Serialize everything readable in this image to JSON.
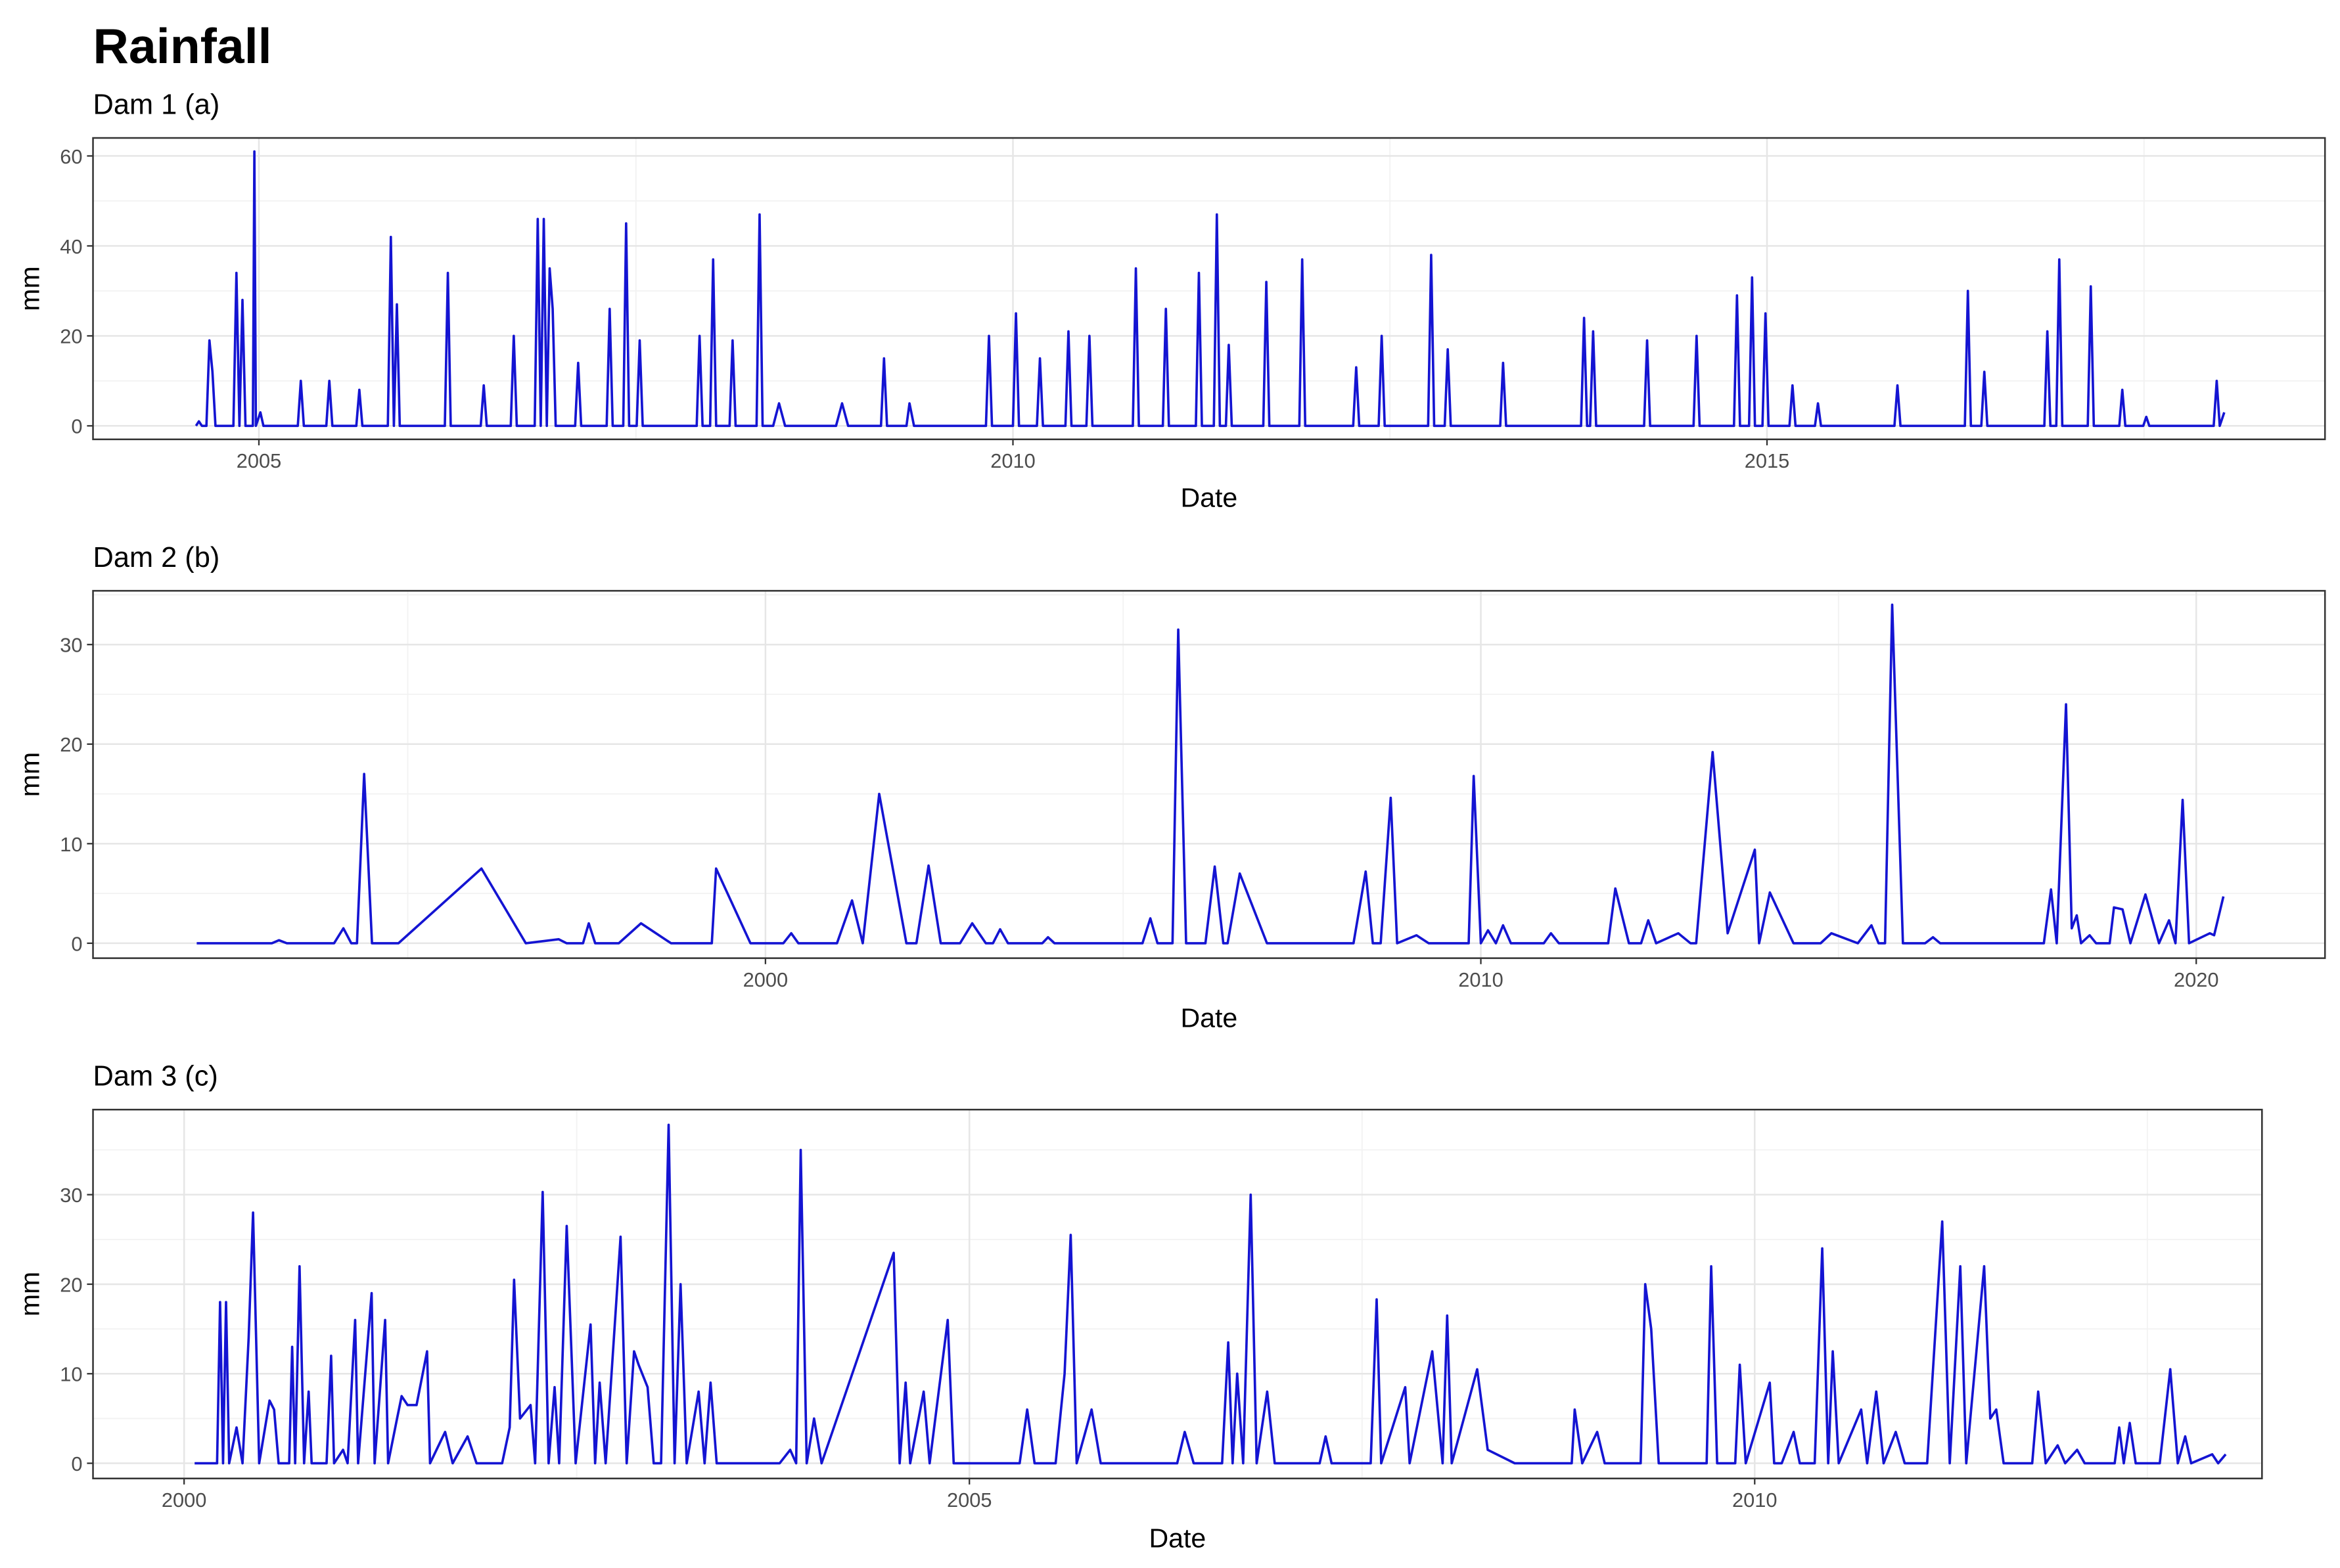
{
  "title": "Rainfall",
  "chart_data": [
    {
      "type": "line",
      "subtitle": "Dam 1 (a)",
      "x_label": "Date",
      "y_label": "mm",
      "color": "#1414d2",
      "grid": true,
      "xlim": [
        2003.9,
        2018.7
      ],
      "xticks": [
        2005,
        2010,
        2015
      ],
      "ylim": [
        -3,
        64
      ],
      "yticks": [
        0,
        20,
        40,
        60
      ],
      "x": [
        2004.583,
        2004.602,
        2004.622,
        2004.652,
        2004.672,
        2004.692,
        2004.712,
        2004.831,
        2004.851,
        2004.871,
        2004.891,
        2004.911,
        2004.96,
        2004.97,
        2004.98,
        2005.01,
        2005.03,
        2005.258,
        2005.278,
        2005.298,
        2005.447,
        2005.467,
        2005.487,
        2005.646,
        2005.666,
        2005.686,
        2005.855,
        2005.875,
        2005.895,
        2005.915,
        2005.934,
        2006.233,
        2006.253,
        2006.272,
        2006.471,
        2006.491,
        2006.511,
        2006.67,
        2006.69,
        2006.71,
        2006.829,
        2006.849,
        2006.869,
        2006.889,
        2006.909,
        2006.928,
        2006.948,
        2006.968,
        2007.097,
        2007.117,
        2007.137,
        2007.306,
        2007.326,
        2007.346,
        2007.416,
        2007.435,
        2007.455,
        2007.505,
        2007.525,
        2007.545,
        2007.903,
        2007.922,
        2007.942,
        2007.992,
        2008.012,
        2008.032,
        2008.121,
        2008.141,
        2008.161,
        2008.3,
        2008.32,
        2008.34,
        2008.41,
        2008.449,
        2008.489,
        2008.827,
        2008.867,
        2008.907,
        2009.125,
        2009.145,
        2009.165,
        2009.294,
        2009.314,
        2009.344,
        2009.821,
        2009.841,
        2009.861,
        2010.0,
        2010.02,
        2010.04,
        2010.159,
        2010.179,
        2010.199,
        2010.348,
        2010.368,
        2010.388,
        2010.487,
        2010.507,
        2010.527,
        2010.795,
        2010.815,
        2010.835,
        2010.994,
        2011.014,
        2011.034,
        2011.213,
        2011.233,
        2011.253,
        2011.332,
        2011.352,
        2011.372,
        2011.412,
        2011.431,
        2011.451,
        2011.66,
        2011.68,
        2011.7,
        2011.899,
        2011.918,
        2011.938,
        2012.256,
        2012.276,
        2012.296,
        2012.425,
        2012.445,
        2012.465,
        2012.753,
        2012.773,
        2012.793,
        2012.863,
        2012.883,
        2012.903,
        2013.231,
        2013.25,
        2013.27,
        2013.767,
        2013.787,
        2013.807,
        2013.827,
        2013.847,
        2013.867,
        2014.185,
        2014.205,
        2014.225,
        2014.513,
        2014.533,
        2014.553,
        2014.781,
        2014.801,
        2014.821,
        2014.881,
        2014.901,
        2014.92,
        2014.97,
        2014.99,
        2015.01,
        2015.149,
        2015.169,
        2015.189,
        2015.318,
        2015.338,
        2015.358,
        2015.845,
        2015.865,
        2015.885,
        2016.312,
        2016.332,
        2016.352,
        2016.421,
        2016.441,
        2016.461,
        2016.839,
        2016.859,
        2016.879,
        2016.918,
        2016.938,
        2016.958,
        2017.127,
        2017.147,
        2017.167,
        2017.336,
        2017.356,
        2017.376,
        2017.495,
        2017.515,
        2017.535,
        2017.962,
        2017.982,
        2018.002,
        2018.032
      ],
      "values": [
        0,
        1,
        0,
        0,
        19,
        12,
        0,
        0,
        34,
        0,
        28,
        0,
        0,
        61,
        0,
        3,
        0,
        0,
        10,
        0,
        0,
        10,
        0,
        0,
        8,
        0,
        0,
        42,
        0,
        27,
        0,
        0,
        34,
        0,
        0,
        9,
        0,
        0,
        20,
        0,
        0,
        46,
        0,
        46,
        0,
        35,
        26,
        0,
        0,
        14,
        0,
        0,
        26,
        0,
        0,
        45,
        0,
        0,
        19,
        0,
        0,
        20,
        0,
        0,
        37,
        0,
        0,
        19,
        0,
        0,
        47,
        0,
        0,
        5,
        0,
        0,
        5,
        0,
        0,
        15,
        0,
        0,
        5,
        0,
        0,
        20,
        0,
        0,
        25,
        0,
        0,
        15,
        0,
        0,
        21,
        0,
        0,
        20,
        0,
        0,
        35,
        0,
        0,
        26,
        0,
        0,
        34,
        0,
        0,
        47,
        0,
        0,
        18,
        0,
        0,
        32,
        0,
        0,
        37,
        0,
        0,
        13,
        0,
        0,
        20,
        0,
        0,
        38,
        0,
        0,
        17,
        0,
        0,
        14,
        0,
        0,
        24,
        0,
        0,
        21,
        0,
        0,
        19,
        0,
        0,
        20,
        0,
        0,
        29,
        0,
        0,
        33,
        0,
        0,
        25,
        0,
        0,
        9,
        0,
        0,
        5,
        0,
        0,
        9,
        0,
        0,
        30,
        0,
        0,
        12,
        0,
        0,
        21,
        0,
        0,
        37,
        0,
        0,
        31,
        0,
        0,
        8,
        0,
        0,
        2,
        0,
        0,
        10,
        0,
        3
      ]
    },
    {
      "type": "line",
      "subtitle": "Dam 2 (b)",
      "x_label": "Date",
      "y_label": "mm",
      "color": "#1414d2",
      "grid": true,
      "xlim": [
        1990.6,
        2021.8
      ],
      "xticks": [
        2000,
        2010,
        2020
      ],
      "ylim": [
        -1.5,
        35.4
      ],
      "yticks": [
        0,
        10,
        20,
        30
      ],
      "x": [
        1992.05,
        1993.1,
        1993.2,
        1993.31,
        1993.97,
        1994.1,
        1994.21,
        1994.29,
        1994.39,
        1994.5,
        1994.87,
        1996.03,
        1996.65,
        1997.11,
        1997.22,
        1997.45,
        1997.53,
        1997.62,
        1997.95,
        1998.26,
        1998.68,
        1999.25,
        1999.31,
        1999.79,
        2000.25,
        2000.36,
        2000.46,
        2001.0,
        2001.21,
        2001.36,
        2001.59,
        2001.97,
        2002.11,
        2002.28,
        2002.45,
        2002.72,
        2002.89,
        2003.08,
        2003.18,
        2003.28,
        2003.39,
        2003.87,
        2003.95,
        2004.04,
        2005.27,
        2005.38,
        2005.48,
        2005.69,
        2005.77,
        2005.88,
        2006.15,
        2006.28,
        2006.4,
        2006.46,
        2006.63,
        2007.01,
        2008.22,
        2008.39,
        2008.49,
        2008.6,
        2008.74,
        2008.83,
        2009.1,
        2009.27,
        2009.83,
        2009.9,
        2010.0,
        2010.1,
        2010.21,
        2010.31,
        2010.42,
        2010.88,
        2010.98,
        2011.09,
        2011.78,
        2011.88,
        2012.07,
        2012.24,
        2012.34,
        2012.45,
        2012.76,
        2012.93,
        2013.01,
        2013.24,
        2013.45,
        2013.83,
        2013.89,
        2014.04,
        2014.37,
        2014.75,
        2014.9,
        2015.27,
        2015.46,
        2015.56,
        2015.65,
        2015.75,
        2015.9,
        2016.21,
        2016.32,
        2016.42,
        2017.87,
        2017.97,
        2018.05,
        2018.18,
        2018.26,
        2018.33,
        2018.39,
        2018.51,
        2018.6,
        2018.79,
        2018.85,
        2018.97,
        2019.08,
        2019.29,
        2019.48,
        2019.62,
        2019.71,
        2019.81,
        2019.9,
        2020.19,
        2020.25,
        2020.38
      ],
      "values": [
        0,
        0,
        0.3,
        0,
        0,
        1.5,
        0,
        0,
        17,
        0,
        0,
        7.5,
        0,
        0.4,
        0,
        0,
        2,
        0,
        0,
        2,
        0,
        0,
        7.5,
        0,
        0,
        1,
        0,
        0,
        4.3,
        0,
        15,
        0,
        0,
        7.8,
        0,
        0,
        2,
        0,
        0,
        1.4,
        0,
        0,
        0.6,
        0,
        0,
        2.5,
        0,
        0,
        31.5,
        0,
        0,
        7.7,
        0,
        0,
        7,
        0,
        0,
        7.2,
        0,
        0,
        14.6,
        0,
        0.8,
        0,
        0,
        16.8,
        0,
        1.3,
        0,
        1.8,
        0,
        0,
        1,
        0,
        0,
        5.5,
        0,
        0,
        2.3,
        0,
        1,
        0,
        0,
        19.2,
        1,
        9.4,
        0,
        5.1,
        0,
        0,
        1,
        0,
        1.8,
        0,
        0,
        34,
        0,
        0,
        0.6,
        0,
        0,
        5.4,
        0,
        24,
        1.5,
        2.8,
        0,
        0.8,
        0,
        0,
        3.6,
        3.4,
        0,
        4.9,
        0,
        2.3,
        0,
        14.4,
        0,
        1,
        0.8,
        4.7
      ]
    },
    {
      "type": "line",
      "subtitle": "Dam 3 (c)",
      "x_label": "Date",
      "y_label": "mm",
      "color": "#1414d2",
      "grid": true,
      "xlim": [
        1999.42,
        2013.23
      ],
      "xticks": [
        2000,
        2005,
        2010
      ],
      "ylim": [
        -1.7,
        39.5
      ],
      "yticks": [
        0,
        10,
        20,
        30
      ],
      "x": [
        2000.067,
        2000.21,
        2000.229,
        2000.248,
        2000.267,
        2000.287,
        2000.334,
        2000.372,
        2000.411,
        2000.439,
        2000.478,
        2000.544,
        2000.573,
        2000.602,
        2000.669,
        2000.688,
        2000.707,
        2000.735,
        2000.764,
        2000.793,
        2000.812,
        2000.907,
        2000.936,
        2000.955,
        2001.012,
        2001.041,
        2001.089,
        2001.108,
        2001.194,
        2001.213,
        2001.28,
        2001.299,
        2001.356,
        2001.385,
        2001.423,
        2001.48,
        2001.547,
        2001.566,
        2001.662,
        2001.71,
        2001.805,
        2001.862,
        2002.025,
        2002.073,
        2002.101,
        2002.139,
        2002.206,
        2002.235,
        2002.283,
        2002.321,
        2002.359,
        2002.388,
        2002.436,
        2002.493,
        2002.588,
        2002.617,
        2002.646,
        2002.684,
        2002.779,
        2002.818,
        2002.865,
        2002.894,
        2002.951,
        2002.99,
        2003.037,
        2003.085,
        2003.123,
        2003.161,
        2003.2,
        2003.276,
        2003.314,
        2003.352,
        2003.391,
        2003.792,
        2003.859,
        2003.897,
        2003.926,
        2003.964,
        2004.011,
        2004.059,
        2004.518,
        2004.556,
        2004.594,
        2004.623,
        2004.709,
        2004.747,
        2004.862,
        2004.9,
        2005.32,
        2005.368,
        2005.415,
        2005.549,
        2005.606,
        2005.645,
        2005.683,
        2005.778,
        2005.836,
        2006.323,
        2006.371,
        2006.428,
        2006.609,
        2006.648,
        2006.676,
        2006.705,
        2006.743,
        2006.791,
        2006.829,
        2006.896,
        2006.944,
        2007.23,
        2007.268,
        2007.306,
        2007.555,
        2007.593,
        2007.622,
        2007.775,
        2007.803,
        2007.947,
        2008.013,
        2008.042,
        2008.071,
        2008.233,
        2008.3,
        2008.472,
        2008.835,
        2008.854,
        2008.902,
        2008.997,
        2009.045,
        2009.274,
        2009.303,
        2009.341,
        2009.389,
        2009.694,
        2009.723,
        2009.761,
        2009.876,
        2009.905,
        2009.943,
        2010.096,
        2010.124,
        2010.172,
        2010.248,
        2010.287,
        2010.382,
        2010.43,
        2010.468,
        2010.497,
        2010.535,
        2010.678,
        2010.716,
        2010.774,
        2010.821,
        2010.898,
        2010.955,
        2011.098,
        2011.194,
        2011.242,
        2011.309,
        2011.347,
        2011.461,
        2011.5,
        2011.538,
        2011.585,
        2011.767,
        2011.805,
        2011.853,
        2011.929,
        2011.977,
        2012.053,
        2012.101,
        2012.292,
        2012.321,
        2012.35,
        2012.388,
        2012.426,
        2012.579,
        2012.646,
        2012.694,
        2012.741,
        2012.779,
        2012.913,
        2012.951,
        2012.999
      ],
      "values": [
        0,
        0,
        18,
        0,
        18,
        0,
        4,
        0,
        14,
        28,
        0,
        7,
        6,
        0,
        0,
        13,
        0,
        22,
        0,
        8,
        0,
        0,
        12,
        0,
        1.5,
        0,
        16,
        0,
        19,
        0,
        16,
        0,
        5,
        7.5,
        6.5,
        6.5,
        12.5,
        0,
        3.5,
        0,
        3,
        0,
        0,
        4,
        20.5,
        5,
        6.5,
        0,
        30.3,
        0,
        8.5,
        0,
        26.5,
        0,
        15.5,
        0,
        9,
        0,
        25.3,
        0,
        12.5,
        11,
        8.5,
        0,
        0,
        37.8,
        0,
        20,
        0,
        8,
        0,
        9,
        0,
        0,
        1.5,
        0,
        35,
        0,
        5,
        0,
        23.5,
        0,
        9,
        0,
        8,
        0,
        16,
        0,
        0,
        6,
        0,
        0,
        10,
        25.5,
        0,
        6,
        0,
        0,
        3.5,
        0,
        0,
        13.5,
        0,
        10,
        0,
        30,
        0,
        8,
        0,
        0,
        3,
        0,
        0,
        18.3,
        0,
        8.5,
        0,
        12.5,
        0,
        16.5,
        0,
        10.5,
        1.5,
        0,
        0,
        6,
        0,
        3.5,
        0,
        0,
        20,
        15,
        0,
        0,
        22,
        0,
        0,
        11,
        0,
        9,
        0,
        0,
        3.5,
        0,
        0,
        24,
        0,
        12.5,
        0,
        6,
        0,
        8,
        0,
        3.5,
        0,
        0,
        27,
        0,
        22,
        0,
        22,
        5,
        6,
        0,
        0,
        8,
        0,
        2,
        0,
        1.5,
        0,
        0,
        4,
        0,
        4.5,
        0,
        0,
        10.5,
        0,
        3,
        0,
        1,
        0,
        1
      ]
    }
  ]
}
